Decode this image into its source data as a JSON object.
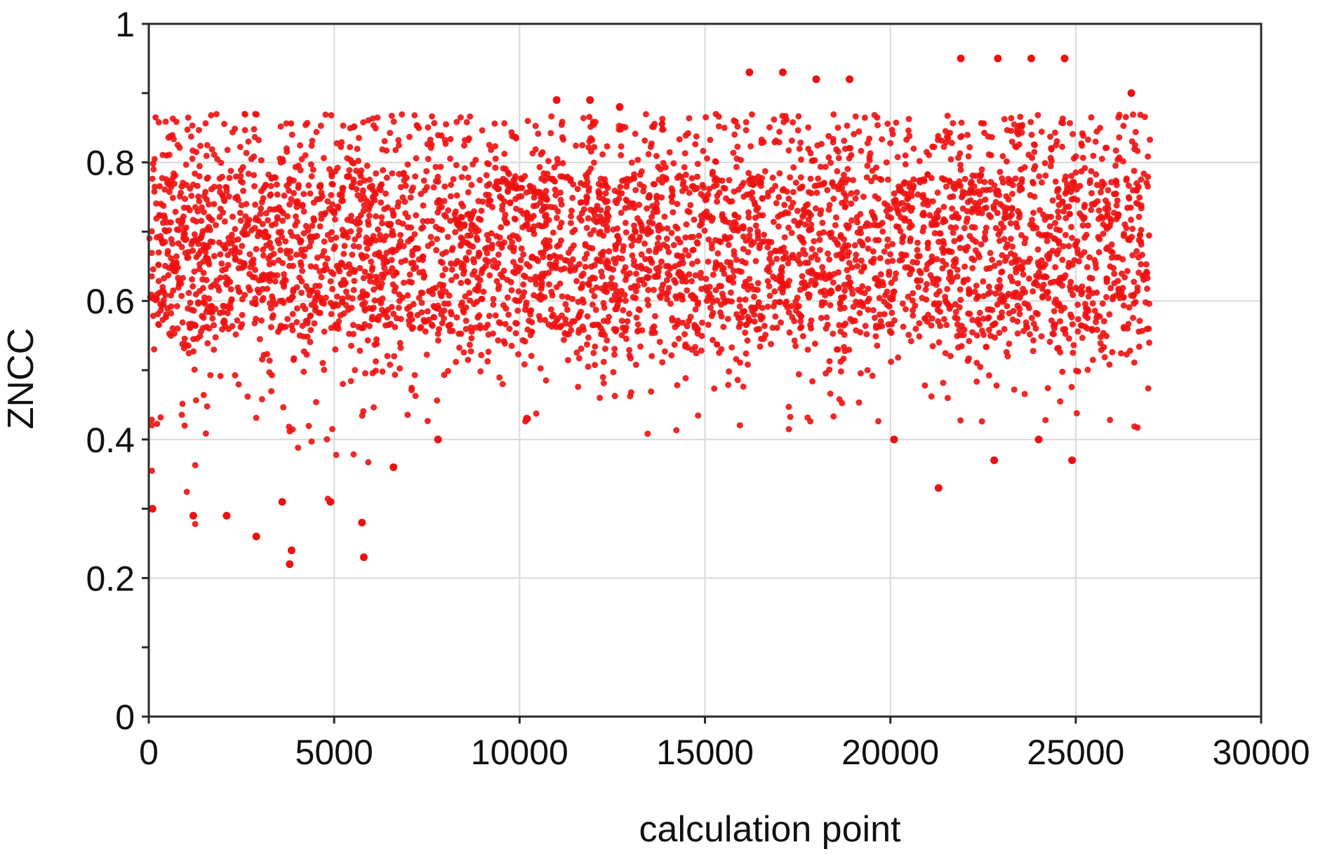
{
  "chart_data": {
    "type": "scatter",
    "title": "",
    "xlabel": "calculation point",
    "ylabel": "ZNCC",
    "xlim": [
      0,
      30000
    ],
    "ylim": [
      0,
      1
    ],
    "xticks": [
      0,
      5000,
      10000,
      15000,
      20000,
      25000,
      30000
    ],
    "yticks": [
      0,
      0.2,
      0.4,
      0.6,
      0.8,
      1
    ],
    "xtick_labels": [
      "0",
      "5000",
      "10000",
      "15000",
      "20000",
      "25000",
      "30000"
    ],
    "ytick_labels": [
      "0",
      "0.2",
      "0.4",
      "0.6",
      "0.8",
      "1"
    ],
    "y_minor_step": 0.1,
    "grid": true,
    "legend": "none",
    "marker_color": "#ee1111",
    "series": [
      {
        "n_points": 27000,
        "x_range": [
          0,
          27000
        ],
        "band_y": [
          0.56,
          0.78
        ],
        "typical_y": 0.68,
        "mean_y": 0.68,
        "max_y": 0.95,
        "min_y": 0.22,
        "points": [
          {
            "x": 3800,
            "y": 0.22
          },
          {
            "x": 3850,
            "y": 0.24
          },
          {
            "x": 5800,
            "y": 0.23
          },
          {
            "x": 5750,
            "y": 0.28
          },
          {
            "x": 2900,
            "y": 0.26
          },
          {
            "x": 1200,
            "y": 0.29
          },
          {
            "x": 2100,
            "y": 0.29
          },
          {
            "x": 100,
            "y": 0.3
          },
          {
            "x": 4900,
            "y": 0.31
          },
          {
            "x": 3600,
            "y": 0.31
          },
          {
            "x": 6600,
            "y": 0.36
          },
          {
            "x": 21300,
            "y": 0.33
          },
          {
            "x": 22800,
            "y": 0.37
          },
          {
            "x": 24900,
            "y": 0.37
          },
          {
            "x": 7800,
            "y": 0.4
          },
          {
            "x": 10200,
            "y": 0.43
          },
          {
            "x": 20100,
            "y": 0.4
          },
          {
            "x": 24000,
            "y": 0.4
          },
          {
            "x": 16200,
            "y": 0.93
          },
          {
            "x": 17100,
            "y": 0.93
          },
          {
            "x": 18000,
            "y": 0.92
          },
          {
            "x": 18900,
            "y": 0.92
          },
          {
            "x": 11000,
            "y": 0.89
          },
          {
            "x": 11900,
            "y": 0.89
          },
          {
            "x": 12700,
            "y": 0.88
          },
          {
            "x": 26500,
            "y": 0.9
          },
          {
            "x": 21900,
            "y": 0.95
          },
          {
            "x": 22900,
            "y": 0.95
          },
          {
            "x": 23800,
            "y": 0.95
          },
          {
            "x": 24700,
            "y": 0.95
          }
        ]
      }
    ]
  }
}
